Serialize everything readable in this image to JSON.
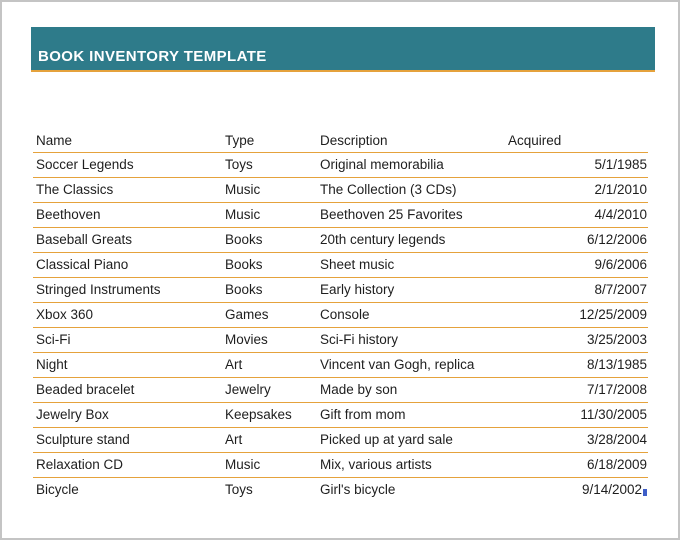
{
  "page": {
    "title": "BOOK INVENTORY TEMPLATE"
  },
  "table": {
    "columns": [
      "Name",
      "Type",
      "Description",
      "Acquired"
    ],
    "rows": [
      [
        "Soccer Legends",
        "Toys",
        "Original memorabilia",
        "5/1/1985"
      ],
      [
        "The Classics",
        "Music",
        "The Collection (3 CDs)",
        "2/1/2010"
      ],
      [
        "Beethoven",
        "Music",
        "Beethoven 25 Favorites",
        "4/4/2010"
      ],
      [
        "Baseball Greats",
        "Books",
        "20th century legends",
        "6/12/2006"
      ],
      [
        "Classical Piano",
        "Books",
        "Sheet music",
        "9/6/2006"
      ],
      [
        "Stringed Instruments",
        "Books",
        "Early history",
        "8/7/2007"
      ],
      [
        "Xbox 360",
        "Games",
        "Console",
        "12/25/2009"
      ],
      [
        "Sci-Fi",
        "Movies",
        "Sci-Fi history",
        "3/25/2003"
      ],
      [
        "Night",
        "Art",
        "Vincent van Gogh, replica",
        "8/13/1985"
      ],
      [
        "Beaded bracelet",
        "Jewelry",
        "Made by son",
        "7/17/2008"
      ],
      [
        "Jewelry Box",
        "Keepsakes",
        "Gift from mom",
        "11/30/2005"
      ],
      [
        "Sculpture stand",
        "Art",
        "Picked up at yard sale",
        "3/28/2004"
      ],
      [
        "Relaxation CD",
        "Music",
        "Mix, various artists",
        "6/18/2009"
      ],
      [
        "Bicycle",
        "Toys",
        "Girl's bicycle",
        "9/14/2002"
      ]
    ]
  },
  "colors": {
    "banner": "#2e7b8a",
    "accent_line": "#e5a23c",
    "text": "#1e1e1e",
    "cursor_mark": "#3e5ec8"
  }
}
